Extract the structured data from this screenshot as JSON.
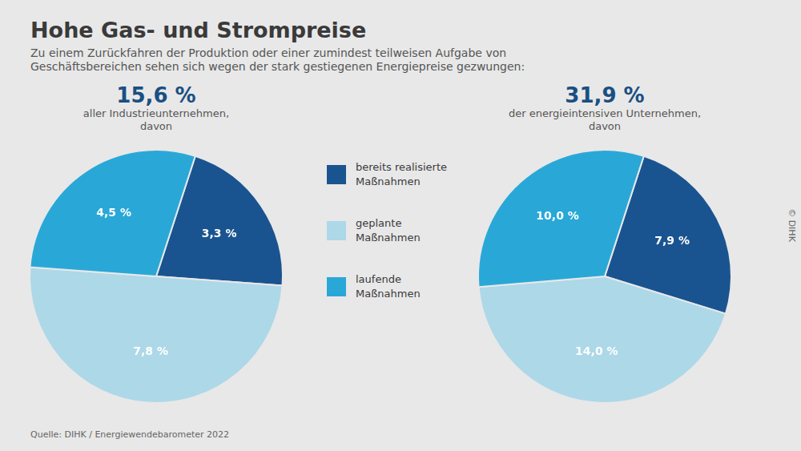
{
  "title": "Hohe Gas- und Strompreise",
  "subtitle": [
    "Zu einem Zurückfahren der Produktion oder einer zumindest teilweisen Aufgabe von",
    "Geschäftsbereichen sehen sich wegen der stark gestiegenen Energiepreise gezwungen:"
  ],
  "annotations": [
    "Quelle: DIHK / Energiewendebarometer 2022",
    "© DIHK"
  ],
  "chart_data": [
    {
      "type": "pie",
      "title": "15,6 %",
      "subtitle": [
        "aller Industrieunternehmen,",
        "davon"
      ],
      "categories": [
        "bereits realisierte\nMaßnahmen",
        "geplante\nMaßnahmen",
        "laufende\nMaßnahmen"
      ],
      "values": [
        3.3,
        7.8,
        4.5
      ],
      "value_labels": [
        "3,3 %",
        "7,8 %",
        "4,5 %"
      ],
      "colors": [
        "#1a5490",
        "#add8e8",
        "#29a8d8"
      ],
      "data_labels": true,
      "legend": "right"
    },
    {
      "type": "pie",
      "title": "31,9 %",
      "subtitle": [
        "der energieintensiven Unternehmen,",
        "davon"
      ],
      "categories": [
        "bereits realisierte\nMaßnahmen",
        "geplante\nMaßnahmen",
        "laufende\nMaßnahmen"
      ],
      "values": [
        7.9,
        14.0,
        10.0
      ],
      "value_labels": [
        "7,9 %",
        "14,0 %",
        "10,0 %"
      ],
      "colors": [
        "#1a5490",
        "#add8e8",
        "#29a8d8"
      ],
      "data_labels": true
    }
  ]
}
